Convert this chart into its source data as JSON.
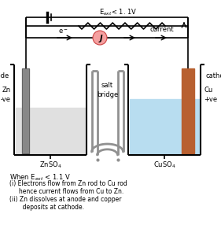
{
  "background_color": "#ffffff",
  "wire_color": "#000000",
  "zn_beaker_color": "#e0e0e0",
  "cu_beaker_color": "#b8ddf0",
  "zn_electrode_color": "#888888",
  "cu_electrode_color": "#b86030",
  "salt_bridge_outer_color": "#909090",
  "salt_bridge_inner_color": "#c0c0c0",
  "galvanometer_color": "#f5a0a0",
  "galv_border_color": "#cc4444",
  "fig_w": 2.81,
  "fig_h": 3.0,
  "dpi": 100,
  "eext_text": "E$_{ext}$< 1. 1V",
  "anode_text": "anode",
  "cathode_text": "cathode",
  "zn_text": "Zn\n-ve",
  "cu_text": "Cu\n+ve",
  "znso4_text": "ZnSO$_4$",
  "cuso4_text": "CuSO$_4$",
  "salt_text": "salt\nbridge",
  "current_text": "current",
  "eminus_text": "e$^-$",
  "when_text": "When E$_{ext}$ < 1.1 V",
  "line1": "(i) Electrons flow from Zn rod to Cu rod",
  "line2": "     hence current flows from Cu to Zn.",
  "line3": "(ii) Zn dissolves at anode and copper",
  "line4": "       deposits at cathode."
}
